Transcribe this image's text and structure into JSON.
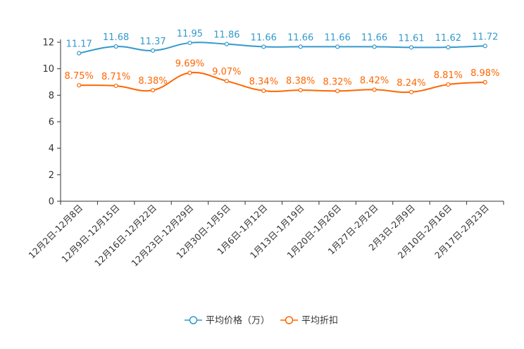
{
  "chart_data": {
    "type": "line",
    "categories": [
      "12月2日-12月8日",
      "12月9日-12月15日",
      "12月16日-12月22日",
      "12月23日-12月29日",
      "12月30日-1月5日",
      "1月6日-1月12日",
      "1月13日-1月19日",
      "1月20日-1月26日",
      "1月27日-2月2日",
      "2月3日-2月9日",
      "2月10日-2月16日",
      "2月17日-2月23日"
    ],
    "ylim": [
      0,
      12
    ],
    "yticks": [
      0,
      2,
      4,
      6,
      8,
      10,
      12
    ],
    "series": [
      {
        "name": "平均价格（万）",
        "color": "#3399cc",
        "values": [
          11.17,
          11.68,
          11.37,
          11.95,
          11.86,
          11.66,
          11.66,
          11.66,
          11.66,
          11.61,
          11.62,
          11.72
        ],
        "labels": [
          "11.17",
          "11.68",
          "11.37",
          "11.95",
          "11.86",
          "11.66",
          "11.66",
          "11.66",
          "11.66",
          "11.61",
          "11.62",
          "11.72"
        ]
      },
      {
        "name": "平均折扣",
        "color": "#ff6600",
        "values": [
          8.75,
          8.71,
          8.38,
          9.69,
          9.07,
          8.34,
          8.38,
          8.32,
          8.42,
          8.24,
          8.81,
          8.98
        ],
        "labels": [
          "8.75%",
          "8.71%",
          "8.38%",
          "9.69%",
          "9.07%",
          "8.34%",
          "8.38%",
          "8.32%",
          "8.42%",
          "8.24%",
          "8.81%",
          "8.98%"
        ]
      }
    ],
    "legend": "bottom-center"
  }
}
